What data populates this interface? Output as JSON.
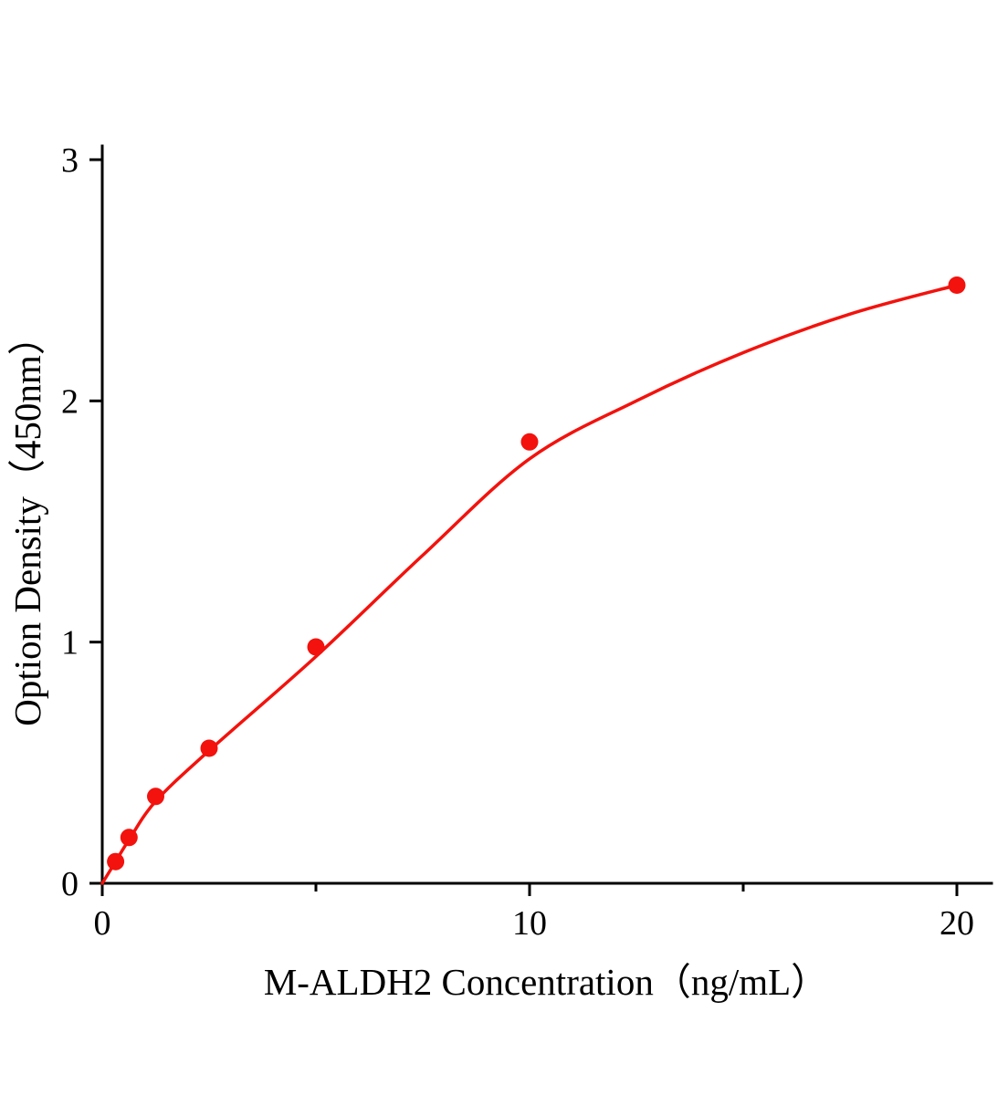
{
  "chart_data": {
    "type": "scatter",
    "title": "",
    "xlabel": "M-ALDH2 Concentration（ng/mL）",
    "ylabel": "Option Density（450nm）",
    "xlim": [
      0,
      20
    ],
    "ylim": [
      0,
      3
    ],
    "x_major_ticks": [
      0,
      10,
      20
    ],
    "x_minor_ticks": [
      5,
      15
    ],
    "y_major_ticks": [
      0,
      1,
      2,
      3
    ],
    "grid": false,
    "legend": false,
    "marker_color": "#f3120d",
    "line_color": "#f3120d",
    "axis_color": "#000000",
    "series": [
      {
        "name": "M-ALDH2 standard curve points",
        "x": [
          0.313,
          0.625,
          1.25,
          2.5,
          5,
          10,
          20
        ],
        "y": [
          0.09,
          0.19,
          0.36,
          0.56,
          0.98,
          1.83,
          2.48
        ]
      }
    ],
    "fit_curve": {
      "name": "4PL fitted curve",
      "x": [
        0,
        0.313,
        0.625,
        1.25,
        2.5,
        5,
        7.5,
        10,
        12.5,
        15,
        17.5,
        20
      ],
      "y": [
        0.0,
        0.09,
        0.18,
        0.34,
        0.55,
        0.94,
        1.36,
        1.76,
        2.0,
        2.2,
        2.36,
        2.48
      ]
    }
  }
}
